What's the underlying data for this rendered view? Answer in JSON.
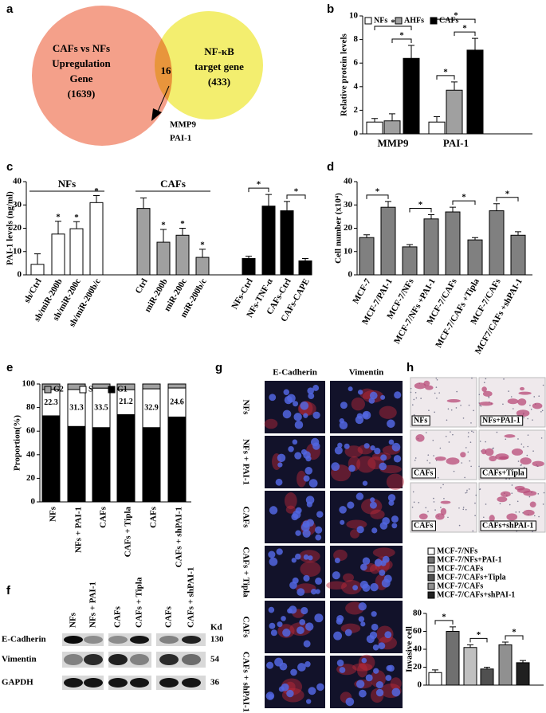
{
  "panel_labels": [
    "a",
    "b",
    "c",
    "d",
    "e",
    "f",
    "g",
    "h"
  ],
  "venn": {
    "left": [
      "CAFs vs NFs",
      "Upregulation",
      "Gene",
      "(1639)"
    ],
    "right": [
      "NF-κB",
      "target gene",
      "(433)"
    ],
    "overlap": "16",
    "genes": [
      "MMP9",
      "PAI-1"
    ]
  },
  "chart_data": [
    {
      "type": "bar",
      "ylabel": "Relative protein levels",
      "categories": [
        "MMP9",
        "PAI-1"
      ],
      "series": [
        {
          "name": "NFs",
          "color": "#ffffff",
          "values": [
            1.0,
            1.0
          ],
          "errors": [
            0.3,
            0.45
          ]
        },
        {
          "name": "AHFs",
          "color": "#a0a0a0",
          "values": [
            1.1,
            3.7
          ],
          "errors": [
            0.6,
            0.7
          ]
        },
        {
          "name": "CAFs",
          "color": "#000000",
          "values": [
            6.4,
            7.1
          ],
          "errors": [
            1.1,
            1.0
          ]
        }
      ],
      "ylim": [
        0,
        10
      ],
      "yticks": [
        0,
        2,
        4,
        6,
        8,
        10
      ],
      "comparisons": [
        {
          "bars": [
            1,
            2
          ],
          "label": "*"
        },
        {
          "bars": [
            0,
            2
          ],
          "label": "*"
        },
        {
          "bars": [
            3,
            4
          ],
          "label": "*"
        },
        {
          "bars": [
            4,
            5
          ],
          "label": "*"
        },
        {
          "bars": [
            3,
            5
          ],
          "label": "*"
        }
      ]
    },
    {
      "type": "bar",
      "ylabel": "PAI-1 levels (ng/ml)",
      "categories": [
        "sh/Ctrl",
        "sh/miR-200b",
        "sh/miR-200c",
        "sh/miR-200b/c",
        "Ctrl",
        "miR-200b",
        "miR-200c",
        "miR-200b/c",
        "NFs-Ctrl",
        "NFs-TNF-α",
        "CAFs-Ctrl",
        "CAFs-CAPE"
      ],
      "values": [
        4.5,
        17.5,
        19.8,
        31,
        28.5,
        14,
        17,
        7.5,
        7,
        29.5,
        27.5,
        6
      ],
      "errors": [
        4.5,
        5.5,
        3,
        3,
        4.5,
        5.5,
        3,
        3.5,
        1,
        5,
        4,
        1
      ],
      "colors": [
        "#ffffff",
        "#ffffff",
        "#ffffff",
        "#ffffff",
        "#a0a0a0",
        "#a0a0a0",
        "#a0a0a0",
        "#a0a0a0",
        "#000000",
        "#000000",
        "#000000",
        "#000000"
      ],
      "bar_labels": [
        null,
        "*",
        "*",
        "*",
        null,
        "*",
        "*",
        "*",
        null,
        null,
        null,
        null
      ],
      "groups": [
        {
          "label": "NFs",
          "bars": [
            0,
            3
          ]
        },
        {
          "label": "CAFs",
          "bars": [
            4,
            7
          ]
        }
      ],
      "comparisons": [
        {
          "bars": [
            8,
            9
          ],
          "label": "*"
        },
        {
          "bars": [
            10,
            11
          ],
          "label": "*"
        }
      ],
      "ylim": [
        0,
        40
      ],
      "yticks": [
        0,
        10,
        20,
        30,
        40
      ]
    },
    {
      "type": "bar",
      "ylabel": "Cell number (x10⁴)",
      "categories": [
        "MCF-7",
        "MCF-7/PAI-1",
        "MCF-7/NFs",
        "MCF-7/NFs +PAI-1",
        "MCF-7/CAFs",
        "MCF-7/CAFs +Tipla",
        "MCF-7/CAFs",
        "MCF7/CAFs +shPAI-1"
      ],
      "values": [
        16,
        29,
        12,
        24,
        27,
        15,
        27.5,
        17
      ],
      "errors": [
        1.2,
        2.5,
        1,
        1.8,
        2,
        1,
        3,
        1.5
      ],
      "colors": [
        "#808080",
        "#808080",
        "#808080",
        "#808080",
        "#808080",
        "#808080",
        "#808080",
        "#808080"
      ],
      "comparisons": [
        {
          "bars": [
            0,
            1
          ],
          "label": "*"
        },
        {
          "bars": [
            2,
            3
          ],
          "label": "*"
        },
        {
          "bars": [
            4,
            5
          ],
          "label": "*"
        },
        {
          "bars": [
            6,
            7
          ],
          "label": "*"
        }
      ],
      "ylim": [
        0,
        40
      ],
      "yticks": [
        0,
        10,
        20,
        30,
        40
      ]
    },
    {
      "type": "stacked_bar",
      "ylabel": "Proportion(%)",
      "categories": [
        "NFs",
        "NFs + PAI-1",
        "CAFs",
        "CAFs + Tipla",
        "CAFs",
        "CAFs + shPAI-1"
      ],
      "series": [
        {
          "name": "G2",
          "color": "#a0a0a0",
          "values": [
            4.7,
            4.7,
            3.5,
            4.8,
            4.1,
            3.4
          ]
        },
        {
          "name": "S",
          "color": "#ffffff",
          "values": [
            22.3,
            31.3,
            33.5,
            21.2,
            32.9,
            24.6
          ],
          "data_labels": true
        },
        {
          "name": "G1",
          "color": "#000000",
          "values": [
            73,
            64,
            63,
            74,
            63,
            72
          ]
        }
      ],
      "ylim": [
        0,
        100
      ],
      "yticks": [
        0,
        20,
        40,
        60,
        80,
        100
      ]
    },
    {
      "type": "bar",
      "ylabel": "Invasive cell",
      "series": [
        {
          "name": "MCF-7/NFs",
          "color": "#ffffff",
          "values": [
            14
          ],
          "errors": [
            3
          ]
        },
        {
          "name": "MCF-7/NFs+PAI-1",
          "color": "#707070",
          "values": [
            60
          ],
          "errors": [
            5
          ]
        },
        {
          "name": "MCF-7/CAFs",
          "color": "#c0c0c0",
          "values": [
            42
          ],
          "errors": [
            3
          ]
        },
        {
          "name": "MCF-7/CAFs+Tipla",
          "color": "#505050",
          "values": [
            18
          ],
          "errors": [
            2
          ]
        },
        {
          "name": "MCF-7/CAFs",
          "color": "#909090",
          "values": [
            45
          ],
          "errors": [
            3
          ]
        },
        {
          "name": "MCF-7/CAFs+shPAI-1",
          "color": "#202020",
          "values": [
            25
          ],
          "errors": [
            2.5
          ]
        }
      ],
      "comparisons": [
        {
          "bars": [
            0,
            1
          ],
          "label": "*"
        },
        {
          "bars": [
            2,
            3
          ],
          "label": "*"
        },
        {
          "bars": [
            4,
            5
          ],
          "label": "*"
        }
      ],
      "ylim": [
        0,
        80
      ],
      "yticks": [
        0,
        20,
        40,
        60,
        80
      ]
    }
  ],
  "blot": {
    "columns": [
      "NFs",
      "NFs + PAI-1",
      "CAFs",
      "CAFs + Tipla",
      "CAFs",
      "CAFs + shPAI-1"
    ],
    "kd_header": "Kd",
    "rows": [
      {
        "label": "E-Cadherin",
        "kd": 130
      },
      {
        "label": "Vimentin",
        "kd": 54
      },
      {
        "label": "GAPDH",
        "kd": 36
      }
    ]
  },
  "fluorescence": {
    "columns": [
      "E-Cadherin",
      "Vimentin"
    ],
    "rows": [
      "NFs",
      "NFs + PAI-1",
      "CAFs",
      "CAFs + Tipla",
      "CAFs",
      "CAFs + shPAI-1"
    ]
  },
  "invasion_images": {
    "labels": [
      "NFs",
      "NFs+PAI-1",
      "CAFs",
      "CAFs+Tipla",
      "CAFs",
      "CAFs+shPAI-1"
    ]
  }
}
